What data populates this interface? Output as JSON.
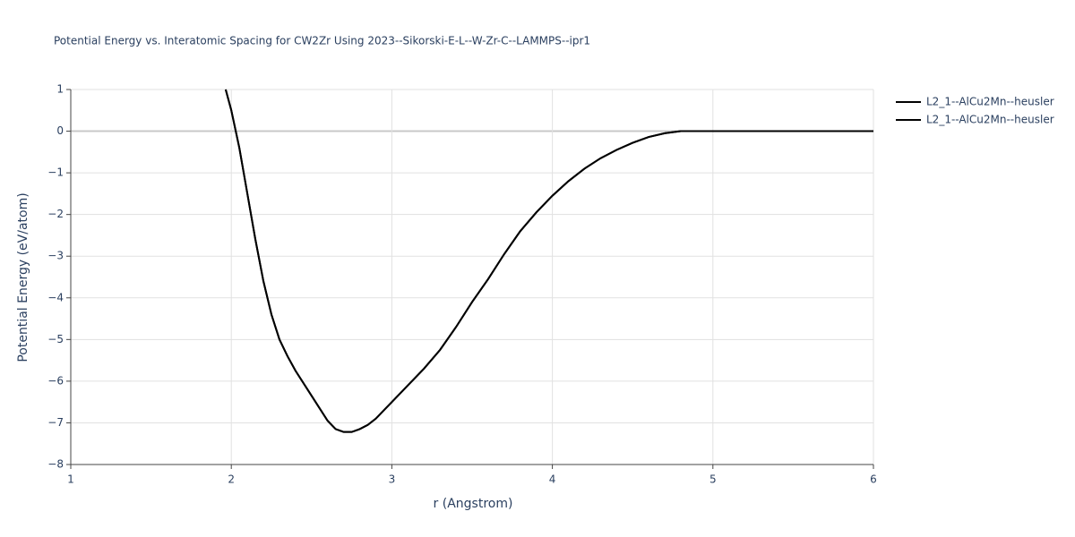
{
  "chart_data": {
    "type": "line",
    "title": "Potential Energy vs. Interatomic Spacing for CW2Zr Using 2023--Sikorski-E-L--W-Zr-C--LAMMPS--ipr1",
    "x_label": "r (Angstrom)",
    "y_label": "Potential Energy (eV/atom)",
    "xlim": [
      1,
      6
    ],
    "ylim": [
      -8,
      1
    ],
    "xticks": [
      1,
      2,
      3,
      4,
      5,
      6
    ],
    "yticks": [
      {
        "value": -8,
        "label": "−8"
      },
      {
        "value": -7,
        "label": "−7"
      },
      {
        "value": -6,
        "label": "−6"
      },
      {
        "value": -5,
        "label": "−5"
      },
      {
        "value": -4,
        "label": "−4"
      },
      {
        "value": -3,
        "label": "−3"
      },
      {
        "value": -2,
        "label": "−2"
      },
      {
        "value": -1,
        "label": "−1"
      },
      0,
      1
    ],
    "grid": true,
    "x": [
      1.965,
      2.0,
      2.05,
      2.1,
      2.15,
      2.2,
      2.25,
      2.3,
      2.35,
      2.4,
      2.5,
      2.6,
      2.65,
      2.7,
      2.75,
      2.8,
      2.85,
      2.9,
      3.0,
      3.1,
      3.2,
      3.3,
      3.4,
      3.5,
      3.6,
      3.7,
      3.8,
      3.9,
      4.0,
      4.1,
      4.2,
      4.3,
      4.4,
      4.5,
      4.6,
      4.7,
      4.8,
      5.0,
      6.0
    ],
    "series": [
      {
        "name": "L2_1--AlCu2Mn--heusler",
        "color": "#000000",
        "values": [
          1.0,
          0.5,
          -0.4,
          -1.5,
          -2.6,
          -3.6,
          -4.4,
          -5.0,
          -5.4,
          -5.75,
          -6.35,
          -6.95,
          -7.15,
          -7.22,
          -7.22,
          -7.15,
          -7.05,
          -6.9,
          -6.5,
          -6.1,
          -5.7,
          -5.25,
          -4.7,
          -4.1,
          -3.55,
          -2.95,
          -2.4,
          -1.95,
          -1.55,
          -1.2,
          -0.9,
          -0.65,
          -0.45,
          -0.28,
          -0.14,
          -0.05,
          0,
          0,
          0
        ]
      },
      {
        "name": "L2_1--AlCu2Mn--heusler",
        "color": "#000000",
        "values": [
          1.0,
          0.5,
          -0.4,
          -1.5,
          -2.6,
          -3.6,
          -4.4,
          -5.0,
          -5.4,
          -5.75,
          -6.35,
          -6.95,
          -7.15,
          -7.22,
          -7.22,
          -7.15,
          -7.05,
          -6.9,
          -6.5,
          -6.1,
          -5.7,
          -5.25,
          -4.7,
          -4.1,
          -3.55,
          -2.95,
          -2.4,
          -1.95,
          -1.55,
          -1.2,
          -0.9,
          -0.65,
          -0.45,
          -0.28,
          -0.14,
          -0.05,
          0,
          0,
          0
        ]
      }
    ]
  }
}
